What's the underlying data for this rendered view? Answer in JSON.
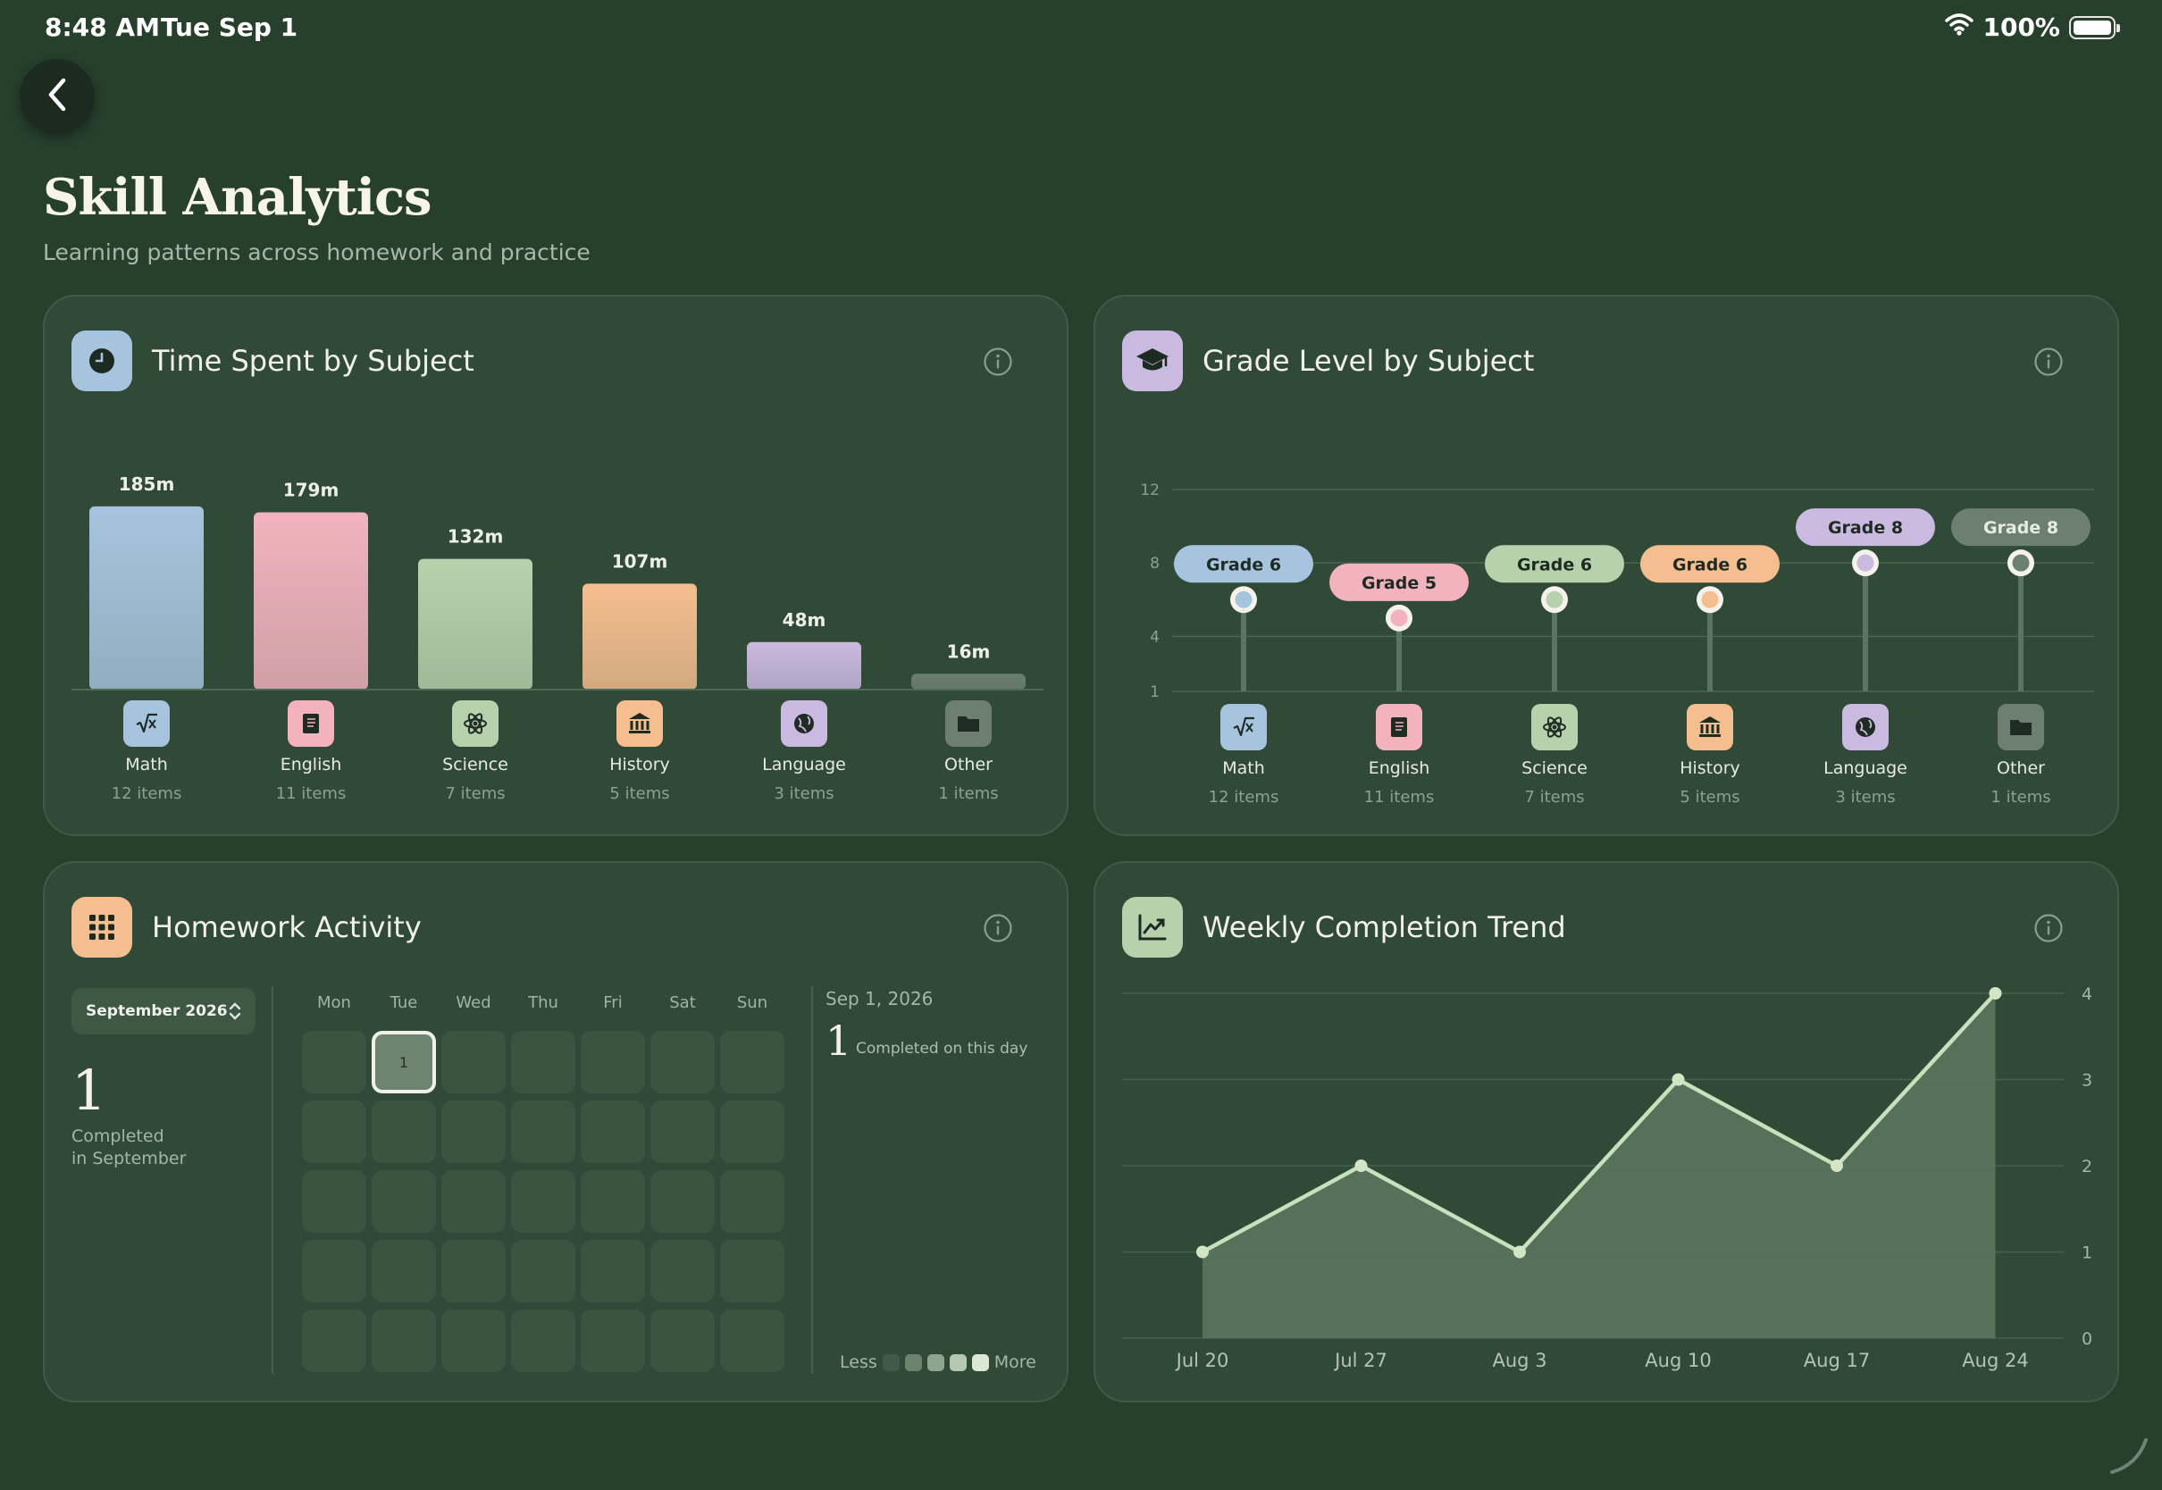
{
  "status_bar": {
    "time": "8:48 AM",
    "date": "Tue Sep 1",
    "battery": "100%",
    "battery_level": 1.0
  },
  "header": {
    "title": "Skill Analytics",
    "subtitle": "Learning patterns across homework and practice"
  },
  "subjects": [
    {
      "name": "Math",
      "count_label": "12 items",
      "icon": "square-root-icon",
      "color": "#a6c4de"
    },
    {
      "name": "English",
      "count_label": "11 items",
      "icon": "book-icon",
      "color": "#f2b3bd"
    },
    {
      "name": "Science",
      "count_label": "7 items",
      "icon": "atom-icon",
      "color": "#b8d1ad"
    },
    {
      "name": "History",
      "count_label": "5 items",
      "icon": "museum-icon",
      "color": "#f5be8f"
    },
    {
      "name": "Language",
      "count_label": "3 items",
      "icon": "globe-icon",
      "color": "#cab9e0"
    },
    {
      "name": "Other",
      "count_label": "1 items",
      "icon": "folder-icon",
      "color": "#6d806f"
    }
  ],
  "time_card": {
    "title": "Time Spent by Subject",
    "icon": "clock-icon",
    "icon_color": "#a6c4de"
  },
  "grade_card": {
    "title": "Grade Level by Subject",
    "icon": "graduation-cap-icon",
    "icon_color": "#cab9e0"
  },
  "homework_card": {
    "title": "Homework Activity",
    "icon": "grid-icon",
    "icon_color": "#f5be8f",
    "month": "September 2026",
    "completed_count": "1",
    "completed_label_line1": "Completed",
    "completed_label_line2": "in September",
    "weekdays": [
      "Mon",
      "Tue",
      "Wed",
      "Thu",
      "Fri",
      "Sat",
      "Sun"
    ],
    "active_day": "1",
    "selected_date": "Sep 1, 2026",
    "selected_count": "1",
    "selected_label": "Completed on this day",
    "legend_less": "Less",
    "legend_more": "More"
  },
  "trend_card": {
    "title": "Weekly Completion Trend",
    "icon": "trend-chart-icon",
    "icon_color": "#b8d1ad"
  },
  "chart_data": [
    {
      "type": "bar",
      "title": "Time Spent by Subject",
      "categories": [
        "Math",
        "English",
        "Science",
        "History",
        "Language",
        "Other"
      ],
      "values": [
        185,
        179,
        132,
        107,
        48,
        16
      ],
      "data_labels": [
        "185m",
        "179m",
        "132m",
        "107m",
        "48m",
        "16m"
      ]
    },
    {
      "type": "scatter",
      "title": "Grade Level by Subject",
      "categories": [
        "Math",
        "English",
        "Science",
        "History",
        "Language",
        "Other"
      ],
      "values": [
        6,
        5,
        6,
        6,
        8,
        8
      ],
      "data_labels": [
        "Grade 6",
        "Grade 5",
        "Grade 6",
        "Grade 6",
        "Grade 8",
        "Grade 8"
      ],
      "y_ticks": [
        "12",
        "8",
        "4",
        "1"
      ],
      "ylim": [
        1,
        12
      ],
      "grid": true
    },
    {
      "type": "area",
      "title": "Weekly Completion Trend",
      "categories": [
        "Jul 20",
        "Jul 27",
        "Aug 3",
        "Aug 10",
        "Aug 17",
        "Aug 24"
      ],
      "values": [
        1,
        2,
        1,
        3,
        2,
        4
      ],
      "y_ticks": [
        "4",
        "3",
        "2",
        "1",
        "0"
      ],
      "ylim": [
        0,
        4
      ],
      "grid": true
    }
  ]
}
